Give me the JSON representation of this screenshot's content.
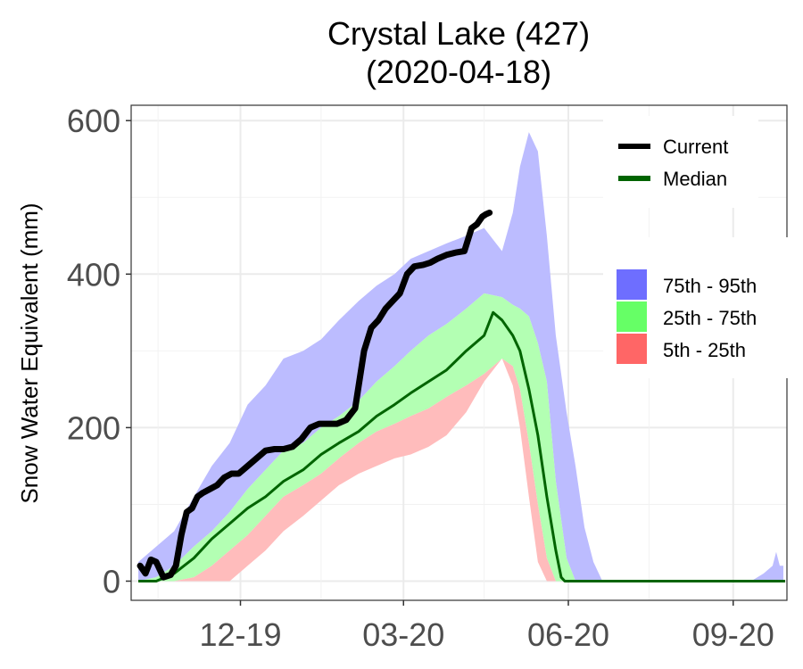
{
  "chart_data": {
    "type": "area",
    "title": "Crystal Lake (427)",
    "subtitle": "(2020-04-18)",
    "xlabel": "",
    "ylabel": "Snow Water Equivalent (mm)",
    "x_range": [
      "2019-10-01",
      "2020-10-01"
    ],
    "ylim": [
      -25,
      620
    ],
    "y_ticks": [
      0,
      200,
      400,
      600
    ],
    "y_tick_labels": [
      "0",
      "200",
      "400",
      "600"
    ],
    "x_ticks": [
      "2019-12-01",
      "2020-03-01",
      "2020-06-01",
      "2020-09-01"
    ],
    "x_tick_labels": [
      "12-19",
      "03-20",
      "06-20",
      "09-20"
    ],
    "grid": true,
    "legend_position": "right",
    "legend_lines": [
      {
        "name": "Current",
        "color": "#000000"
      },
      {
        "name": "Median",
        "color": "#006400"
      }
    ],
    "legend_fills": [
      {
        "name": "75th - 95th",
        "color": "#6e6eff"
      },
      {
        "name": "25th - 75th",
        "color": "#66ff66"
      },
      {
        "name": "5th - 25th",
        "color": "#ff6666"
      }
    ],
    "band_colors": {
      "p75_p95": "#bcbcff",
      "p25_p75": "#b3ffb3",
      "p5_p25": "#ffbcbc"
    },
    "bands": {
      "dates": [
        "2019-10-05",
        "2019-10-15",
        "2019-10-25",
        "2019-11-05",
        "2019-11-15",
        "2019-11-25",
        "2019-12-05",
        "2019-12-15",
        "2019-12-25",
        "2020-01-05",
        "2020-01-15",
        "2020-01-25",
        "2020-02-05",
        "2020-02-15",
        "2020-02-25",
        "2020-03-05",
        "2020-03-15",
        "2020-03-25",
        "2020-04-05",
        "2020-04-15",
        "2020-04-25",
        "2020-05-01",
        "2020-05-05",
        "2020-05-10",
        "2020-05-15",
        "2020-05-20",
        "2020-05-25",
        "2020-05-31",
        "2020-06-05",
        "2020-06-10",
        "2020-06-15",
        "2020-06-20",
        "2020-06-25",
        "2020-07-01"
      ],
      "p95": [
        25,
        45,
        65,
        110,
        150,
        180,
        230,
        255,
        290,
        300,
        315,
        340,
        365,
        385,
        400,
        420,
        430,
        440,
        450,
        460,
        430,
        480,
        540,
        585,
        560,
        450,
        320,
        220,
        150,
        70,
        25,
        0,
        0,
        0
      ],
      "p75": [
        0,
        5,
        20,
        45,
        65,
        90,
        120,
        145,
        170,
        180,
        200,
        215,
        235,
        260,
        280,
        300,
        320,
        335,
        355,
        375,
        370,
        360,
        355,
        345,
        310,
        260,
        130,
        30,
        0,
        0,
        0,
        0,
        0,
        0
      ],
      "p25": [
        0,
        0,
        0,
        5,
        20,
        40,
        60,
        85,
        110,
        125,
        140,
        160,
        180,
        195,
        205,
        215,
        225,
        240,
        255,
        270,
        290,
        280,
        250,
        180,
        100,
        30,
        0,
        0,
        0,
        0,
        0,
        0,
        0,
        0
      ],
      "p5": [
        0,
        0,
        0,
        0,
        0,
        0,
        20,
        40,
        65,
        85,
        105,
        125,
        140,
        150,
        160,
        165,
        175,
        190,
        220,
        260,
        290,
        255,
        200,
        110,
        25,
        0,
        0,
        0,
        0,
        0,
        0,
        0,
        0,
        0
      ]
    },
    "late_season_p95": {
      "dates": [
        "2020-09-11",
        "2020-09-18",
        "2020-09-23",
        "2020-09-25",
        "2020-09-27",
        "2020-09-29"
      ],
      "values": [
        0,
        10,
        20,
        38,
        20,
        20
      ]
    },
    "series": [
      {
        "name": "Current",
        "dates": [
          "2019-10-06",
          "2019-10-09",
          "2019-10-12",
          "2019-10-15",
          "2019-10-19",
          "2019-10-23",
          "2019-10-26",
          "2019-10-29",
          "2019-11-01",
          "2019-11-04",
          "2019-11-07",
          "2019-11-10",
          "2019-11-14",
          "2019-11-18",
          "2019-11-22",
          "2019-11-26",
          "2019-11-30",
          "2019-12-05",
          "2019-12-10",
          "2019-12-15",
          "2019-12-20",
          "2019-12-25",
          "2019-12-30",
          "2020-01-04",
          "2020-01-09",
          "2020-01-14",
          "2020-01-19",
          "2020-01-24",
          "2020-01-29",
          "2020-02-03",
          "2020-02-08",
          "2020-02-12",
          "2020-02-16",
          "2020-02-20",
          "2020-02-24",
          "2020-02-28",
          "2020-03-03",
          "2020-03-07",
          "2020-03-12",
          "2020-03-16",
          "2020-03-20",
          "2020-03-25",
          "2020-03-30",
          "2020-04-04",
          "2020-04-08",
          "2020-04-11",
          "2020-04-14",
          "2020-04-16",
          "2020-04-18"
        ],
        "values": [
          20,
          10,
          28,
          25,
          5,
          8,
          20,
          60,
          90,
          95,
          110,
          115,
          120,
          125,
          135,
          140,
          140,
          150,
          160,
          170,
          172,
          172,
          175,
          185,
          200,
          205,
          205,
          205,
          210,
          225,
          300,
          330,
          340,
          355,
          365,
          375,
          400,
          410,
          412,
          415,
          420,
          425,
          428,
          430,
          460,
          465,
          475,
          478,
          480
        ]
      },
      {
        "name": "Median",
        "dates": [
          "2019-10-05",
          "2019-10-15",
          "2019-10-25",
          "2019-11-05",
          "2019-11-15",
          "2019-11-25",
          "2019-12-05",
          "2019-12-15",
          "2019-12-25",
          "2020-01-05",
          "2020-01-15",
          "2020-01-25",
          "2020-02-05",
          "2020-02-15",
          "2020-02-25",
          "2020-03-05",
          "2020-03-15",
          "2020-03-25",
          "2020-04-05",
          "2020-04-15",
          "2020-04-20",
          "2020-04-25",
          "2020-05-01",
          "2020-05-05",
          "2020-05-10",
          "2020-05-15",
          "2020-05-20",
          "2020-05-25",
          "2020-05-28",
          "2020-05-30",
          "2020-06-05",
          "2020-07-15",
          "2020-08-15",
          "2020-09-15",
          "2020-09-30"
        ],
        "values": [
          0,
          0,
          10,
          30,
          55,
          75,
          95,
          110,
          130,
          145,
          165,
          180,
          195,
          215,
          230,
          245,
          260,
          275,
          300,
          320,
          350,
          340,
          320,
          300,
          250,
          190,
          110,
          40,
          5,
          0,
          0,
          0,
          0,
          0,
          0
        ]
      }
    ]
  }
}
